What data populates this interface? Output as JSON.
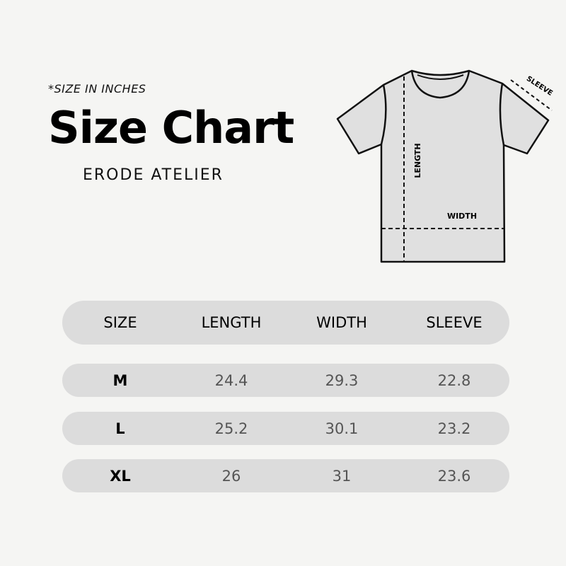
{
  "header": {
    "note": "*SIZE IN INCHES",
    "title": "Size Chart",
    "brand": "ERODE ATELIER"
  },
  "diagram": {
    "length_label": "LENGTH",
    "width_label": "WIDTH",
    "sleeve_label": "SLEEVE",
    "icon": "t-shirt-outline"
  },
  "table": {
    "columns": [
      "SIZE",
      "LENGTH",
      "WIDTH",
      "SLEEVE"
    ],
    "rows": [
      [
        "M",
        "24.4",
        "29.3",
        "22.8"
      ],
      [
        "L",
        "25.2",
        "30.1",
        "23.2"
      ],
      [
        "XL",
        "26",
        "31",
        "23.6"
      ]
    ]
  },
  "colors": {
    "background": "#f5f5f3",
    "row_fill": "#dcdcdc",
    "shirt_fill": "#e0e0e0"
  }
}
